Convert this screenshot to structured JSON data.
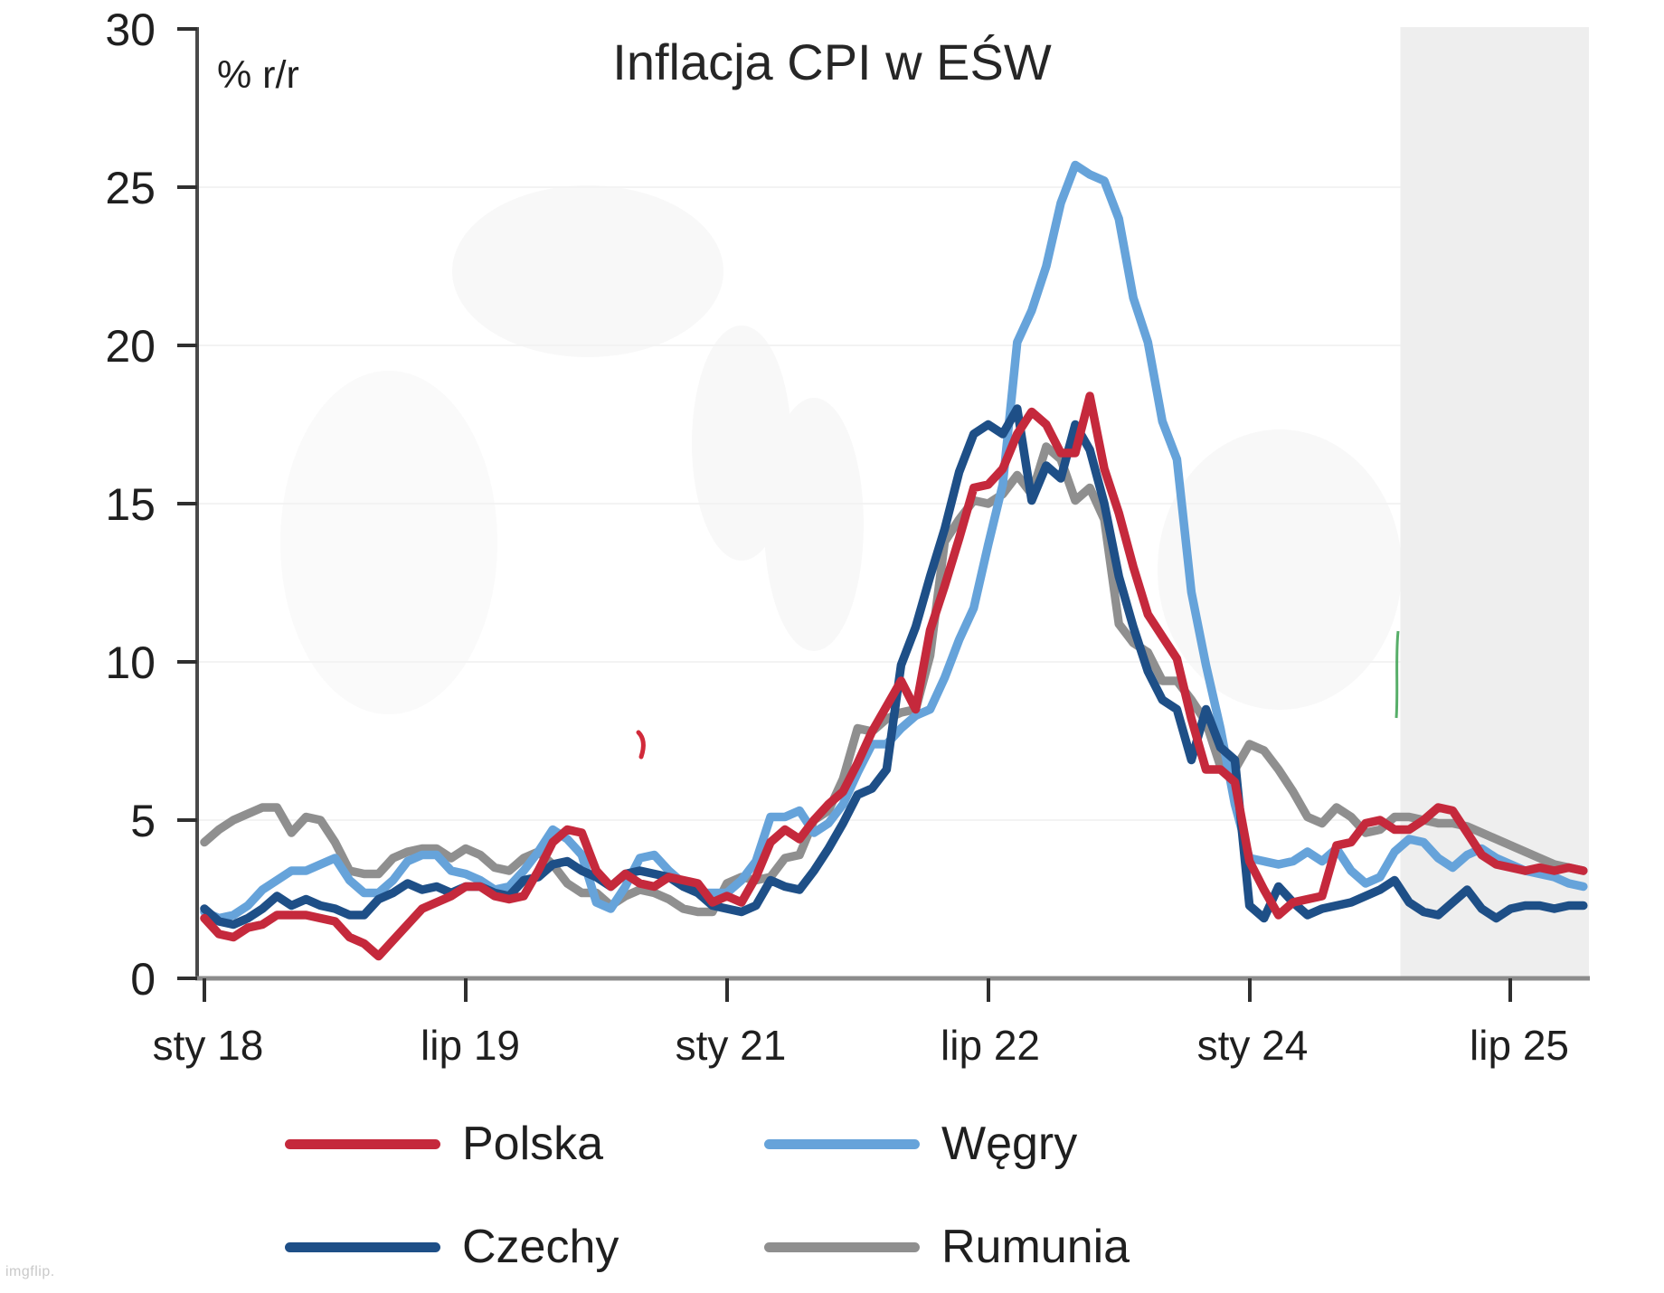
{
  "watermark": "imgflip.",
  "chart_data": {
    "type": "line",
    "title": "Inflacja CPI w EŚW",
    "unit_label": "% r/r",
    "x_start": "2018-01",
    "x_frequency": "monthly",
    "x_tick_labels": [
      "sty 18",
      "lip 19",
      "sty 21",
      "lip 22",
      "sty 24",
      "lip 25"
    ],
    "x_tick_month_indices": [
      0,
      18,
      36,
      54,
      72,
      90
    ],
    "ylim": [
      0,
      30
    ],
    "y_ticks": [
      0,
      5,
      10,
      15,
      20,
      25,
      30
    ],
    "grid": "very faint horizontal lines at y ticks",
    "legend_position": "bottom",
    "forecast_shading": {
      "start_month_index": 82,
      "end_month_index": 95,
      "fill": "#eeeeee"
    },
    "series": [
      {
        "name": "Polska",
        "color": "#c5293c",
        "values": [
          1.9,
          1.4,
          1.3,
          1.6,
          1.7,
          2.0,
          2.0,
          2.0,
          1.9,
          1.8,
          1.3,
          1.1,
          0.7,
          1.2,
          1.7,
          2.2,
          2.4,
          2.6,
          2.9,
          2.9,
          2.6,
          2.5,
          2.6,
          3.4,
          4.3,
          4.7,
          4.6,
          3.4,
          2.9,
          3.3,
          3.0,
          2.9,
          3.2,
          3.1,
          3.0,
          2.4,
          2.6,
          2.4,
          3.2,
          4.3,
          4.7,
          4.4,
          5.0,
          5.5,
          5.9,
          6.8,
          7.8,
          8.6,
          9.4,
          8.5,
          11.0,
          12.4,
          13.9,
          15.5,
          15.6,
          16.1,
          17.2,
          17.9,
          17.5,
          16.6,
          16.6,
          18.4,
          16.1,
          14.7,
          13.0,
          11.5,
          10.8,
          10.1,
          8.2,
          6.6,
          6.6,
          6.2,
          3.7,
          2.8,
          2.0,
          2.4,
          2.5,
          2.6,
          4.2,
          4.3,
          4.9,
          5.0,
          4.7,
          4.7,
          5.0,
          5.4,
          5.3,
          4.6,
          3.9,
          3.6,
          3.5,
          3.4,
          3.5,
          3.4,
          3.5,
          3.4
        ]
      },
      {
        "name": "Węgry",
        "color": "#66a3da",
        "values": [
          2.1,
          1.9,
          2.0,
          2.3,
          2.8,
          3.1,
          3.4,
          3.4,
          3.6,
          3.8,
          3.1,
          2.7,
          2.7,
          3.1,
          3.7,
          3.9,
          3.9,
          3.4,
          3.3,
          3.1,
          2.8,
          2.9,
          3.4,
          4.0,
          4.7,
          4.4,
          3.9,
          2.4,
          2.2,
          2.9,
          3.8,
          3.9,
          3.4,
          3.0,
          2.7,
          2.7,
          2.7,
          3.1,
          3.7,
          5.1,
          5.1,
          5.3,
          4.6,
          4.9,
          5.5,
          6.5,
          7.4,
          7.4,
          7.9,
          8.3,
          8.5,
          9.5,
          10.7,
          11.7,
          13.7,
          15.6,
          20.1,
          21.1,
          22.5,
          24.5,
          25.7,
          25.4,
          25.2,
          24.0,
          21.5,
          20.1,
          17.6,
          16.4,
          12.2,
          9.9,
          7.9,
          5.5,
          3.8,
          3.7,
          3.6,
          3.7,
          4.0,
          3.7,
          4.1,
          3.4,
          3.0,
          3.2,
          4.0,
          4.4,
          4.3,
          3.8,
          3.5,
          3.9,
          4.1,
          3.8,
          3.6,
          3.4,
          3.3,
          3.2,
          3.0,
          2.9
        ]
      },
      {
        "name": "Czechy",
        "color": "#1e4f87",
        "values": [
          2.2,
          1.8,
          1.7,
          1.9,
          2.2,
          2.6,
          2.3,
          2.5,
          2.3,
          2.2,
          2.0,
          2.0,
          2.5,
          2.7,
          3.0,
          2.8,
          2.9,
          2.7,
          2.9,
          2.9,
          2.7,
          2.6,
          3.1,
          3.2,
          3.6,
          3.7,
          3.4,
          3.2,
          2.9,
          3.3,
          3.4,
          3.3,
          3.2,
          2.9,
          2.7,
          2.3,
          2.2,
          2.1,
          2.3,
          3.1,
          2.9,
          2.8,
          3.4,
          4.1,
          4.9,
          5.8,
          6.0,
          6.6,
          9.9,
          11.1,
          12.7,
          14.2,
          16.0,
          17.2,
          17.5,
          17.2,
          18.0,
          15.1,
          16.2,
          15.8,
          17.5,
          16.7,
          15.0,
          12.7,
          11.1,
          9.7,
          8.8,
          8.5,
          6.9,
          8.5,
          7.3,
          6.9,
          2.3,
          1.9,
          2.9,
          2.4,
          2.0,
          2.2,
          2.3,
          2.4,
          2.6,
          2.8,
          3.1,
          2.4,
          2.1,
          2.0,
          2.4,
          2.8,
          2.2,
          1.9,
          2.2,
          2.3,
          2.3,
          2.2,
          2.3,
          2.3
        ]
      },
      {
        "name": "Rumunia",
        "color": "#8f8f8f",
        "values": [
          4.3,
          4.7,
          5.0,
          5.2,
          5.4,
          5.4,
          4.6,
          5.1,
          5.0,
          4.3,
          3.4,
          3.3,
          3.3,
          3.8,
          4.0,
          4.1,
          4.1,
          3.8,
          4.1,
          3.9,
          3.5,
          3.4,
          3.8,
          4.0,
          3.6,
          3.0,
          2.7,
          2.7,
          2.3,
          2.6,
          2.8,
          2.7,
          2.5,
          2.2,
          2.1,
          2.1,
          3.0,
          3.2,
          3.1,
          3.2,
          3.8,
          3.9,
          5.0,
          5.3,
          6.3,
          7.9,
          7.8,
          8.2,
          8.4,
          8.5,
          10.2,
          13.8,
          14.5,
          15.1,
          15.0,
          15.3,
          15.9,
          15.3,
          16.8,
          16.4,
          15.1,
          15.5,
          14.5,
          11.2,
          10.6,
          10.3,
          9.4,
          9.4,
          8.8,
          8.1,
          6.7,
          6.6,
          7.4,
          7.2,
          6.6,
          5.9,
          5.1,
          4.9,
          5.4,
          5.1,
          4.6,
          4.7,
          5.1,
          5.1,
          5.0,
          4.9,
          4.9,
          4.8,
          4.6,
          4.4,
          4.2,
          4.0,
          3.8,
          3.6,
          3.5,
          3.4
        ]
      }
    ]
  }
}
